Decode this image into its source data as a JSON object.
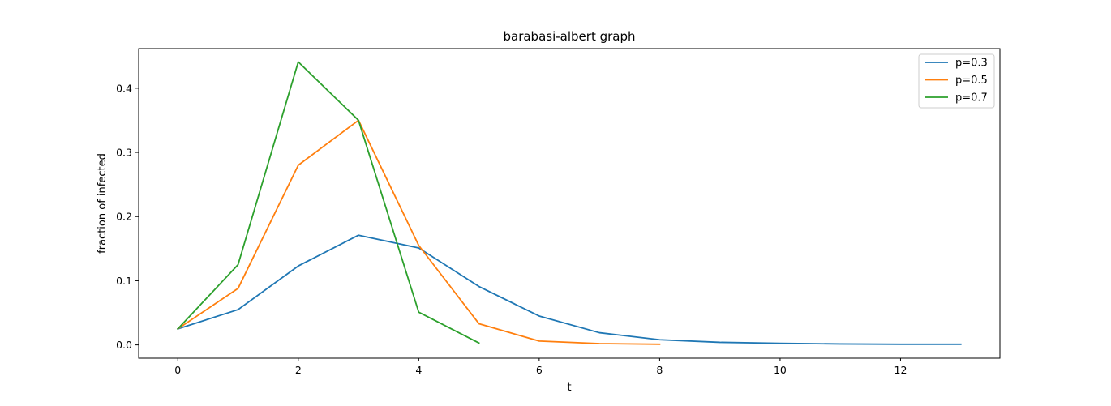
{
  "chart_data": {
    "type": "line",
    "title": "barabasi-albert graph",
    "xlabel": "t",
    "ylabel": "fraction of infected",
    "xlim": [
      -0.65,
      13.65
    ],
    "ylim": [
      -0.0207,
      0.4617
    ],
    "xticks": [
      0,
      2,
      4,
      6,
      8,
      10,
      12
    ],
    "yticks": [
      0.0,
      0.1,
      0.2,
      0.3,
      0.4
    ],
    "xtick_labels": [
      "0",
      "2",
      "4",
      "6",
      "8",
      "10",
      "12"
    ],
    "ytick_labels": [
      "0.0",
      "0.1",
      "0.2",
      "0.3",
      "0.4"
    ],
    "grid": false,
    "legend_position": "top-right",
    "series": [
      {
        "name": "p=0.3",
        "color": "#1f77b4",
        "x": [
          0,
          1,
          2,
          3,
          4,
          5,
          6,
          7,
          8,
          9,
          10,
          11,
          12,
          13
        ],
        "y": [
          0.025,
          0.055,
          0.123,
          0.171,
          0.151,
          0.091,
          0.045,
          0.019,
          0.008,
          0.004,
          0.0025,
          0.0015,
          0.001,
          0.001
        ]
      },
      {
        "name": "p=0.5",
        "color": "#ff7f0e",
        "x": [
          0,
          1,
          2,
          3,
          4,
          5,
          6,
          7,
          8
        ],
        "y": [
          0.025,
          0.088,
          0.28,
          0.35,
          0.155,
          0.033,
          0.006,
          0.002,
          0.001
        ]
      },
      {
        "name": "p=0.7",
        "color": "#2ca02c",
        "x": [
          0,
          1,
          2,
          3,
          4,
          5
        ],
        "y": [
          0.025,
          0.125,
          0.441,
          0.35,
          0.051,
          0.003
        ]
      }
    ]
  }
}
